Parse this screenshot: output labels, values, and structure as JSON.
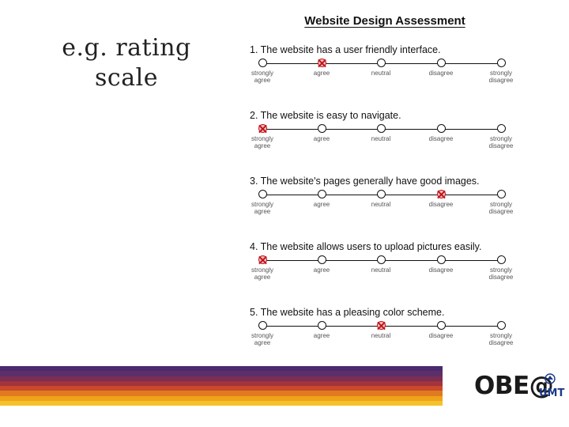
{
  "heading": {
    "line1": "e.g. rating",
    "line2": "scale"
  },
  "assessment": {
    "title": "Website Design Assessment",
    "scale_labels": [
      [
        "strongly",
        "agree"
      ],
      [
        "agree",
        ""
      ],
      [
        "neutral",
        ""
      ],
      [
        "disagree",
        ""
      ],
      [
        "strongly",
        "disagree"
      ]
    ],
    "questions": [
      {
        "text": "1. The website has a user friendly interface.",
        "selected": 1
      },
      {
        "text": "2. The website is easy to navigate.",
        "selected": 0
      },
      {
        "text": "3. The website's pages generally have good images.",
        "selected": 3
      },
      {
        "text": "4. The website allows users to upload pictures easily.",
        "selected": 0
      },
      {
        "text": "5. The website has a pleasing color scheme.",
        "selected": 2
      }
    ]
  },
  "footer": {
    "stripe_colors": [
      "#4b2a6e",
      "#5c2f6a",
      "#7a2e52",
      "#a3333c",
      "#c84a2b",
      "#e07a1f",
      "#efa21b",
      "#f6c22a"
    ]
  },
  "logo": {
    "text": "OBE@",
    "sub": "UMT",
    "emblem": "shield-emblem-icon"
  }
}
